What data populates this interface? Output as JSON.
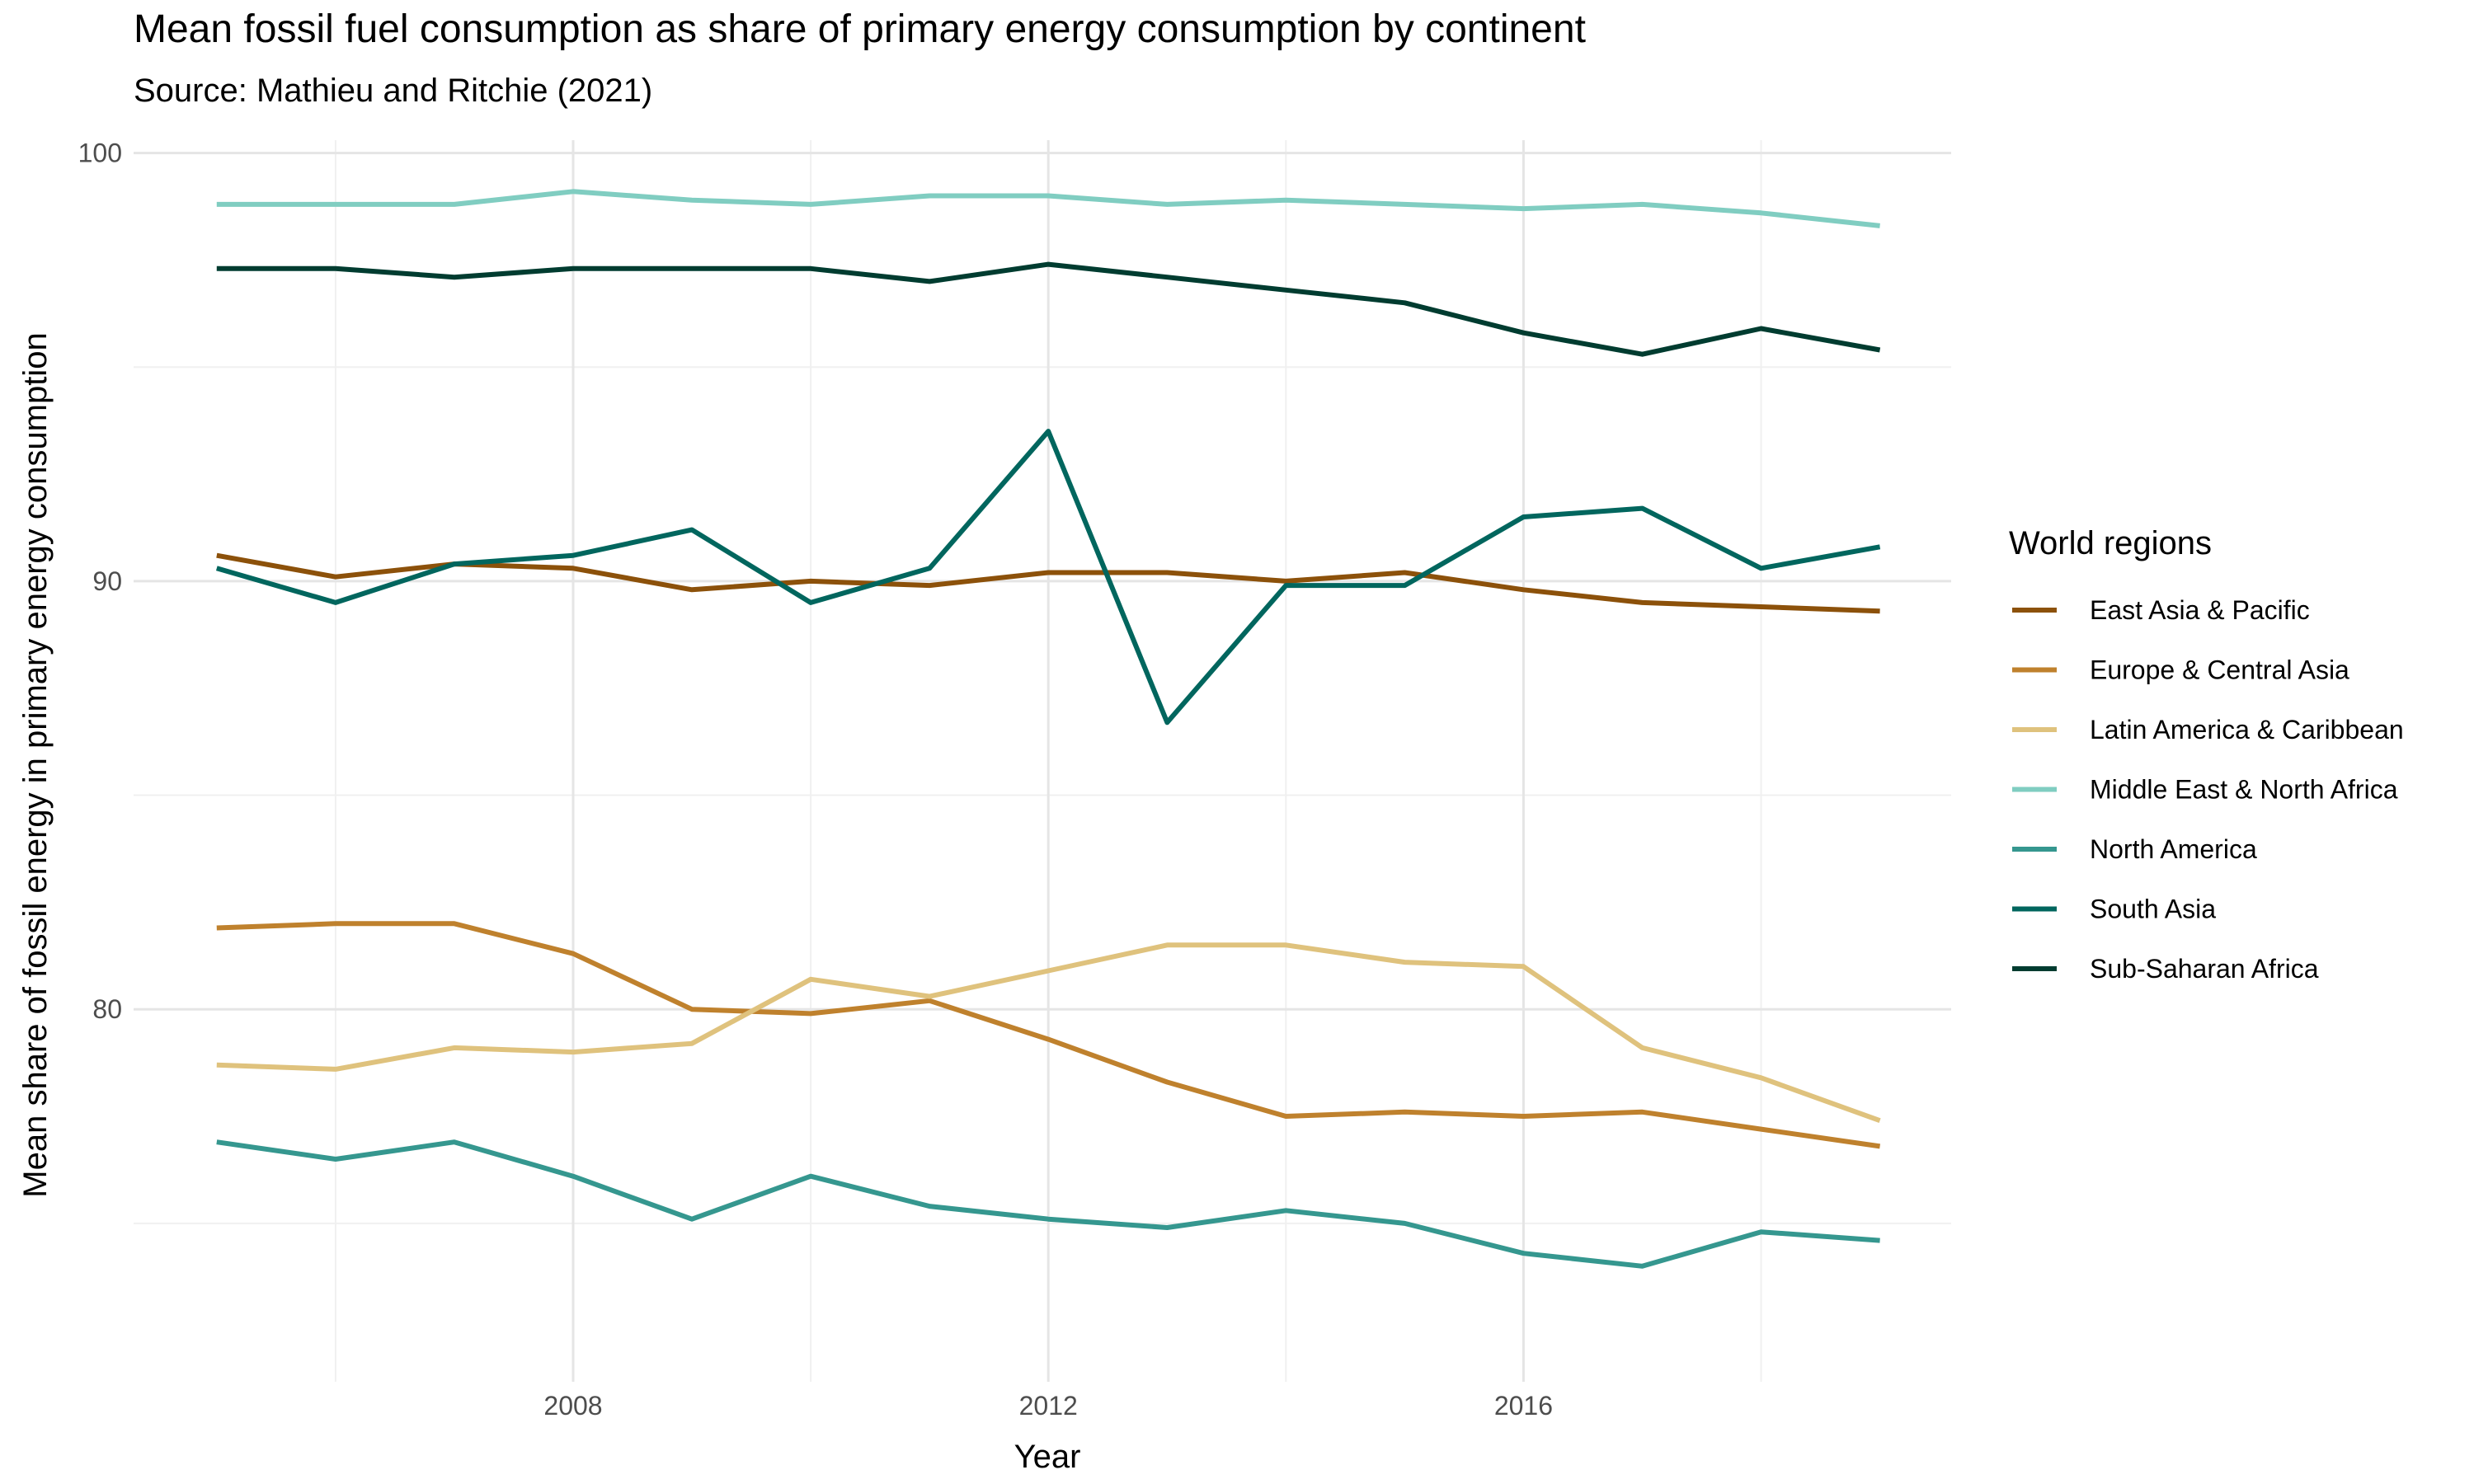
{
  "title": "Mean fossil fuel consumption as share of primary energy consumption by continent",
  "subtitle": "Source: Mathieu and Ritchie (2021)",
  "chart_data": {
    "type": "line",
    "title": "Mean fossil fuel consumption as share of primary energy consumption by continent",
    "subtitle": "Source: Mathieu and Ritchie (2021)",
    "xlabel": "Year",
    "ylabel": "Mean share of fossil energy in primary energy consumption",
    "x": [
      2005,
      2006,
      2007,
      2008,
      2009,
      2010,
      2011,
      2012,
      2013,
      2014,
      2015,
      2016,
      2017,
      2018,
      2019
    ],
    "xlim": [
      2004.3,
      2019.6
    ],
    "ylim": [
      71.3,
      100.3
    ],
    "x_ticks": [
      2008,
      2012,
      2016
    ],
    "y_ticks": [
      80,
      90,
      100
    ],
    "grid": true,
    "legend": {
      "title": "World regions",
      "position": "right"
    },
    "series": [
      {
        "name": "East Asia & Pacific",
        "color": "#8c510a",
        "values": [
          90.6,
          90.1,
          90.4,
          90.3,
          89.8,
          90.0,
          89.9,
          90.2,
          90.2,
          90.0,
          90.2,
          89.8,
          89.5,
          89.4,
          89.3
        ]
      },
      {
        "name": "Europe & Central Asia",
        "color": "#bf812d",
        "values": [
          81.9,
          82.0,
          82.0,
          81.3,
          80.0,
          79.9,
          80.2,
          79.3,
          78.3,
          77.5,
          77.6,
          77.5,
          77.6,
          77.2,
          76.8
        ]
      },
      {
        "name": "Latin America & Caribbean",
        "color": "#dfc27d",
        "values": [
          78.7,
          78.6,
          79.1,
          79.0,
          79.2,
          80.7,
          80.3,
          80.9,
          81.5,
          81.5,
          81.1,
          81.0,
          79.1,
          78.4,
          77.4
        ]
      },
      {
        "name": "Middle East & North Africa",
        "color": "#80cdc1",
        "values": [
          98.8,
          98.8,
          98.8,
          99.1,
          98.9,
          98.8,
          99.0,
          99.0,
          98.8,
          98.9,
          98.8,
          98.7,
          98.8,
          98.6,
          98.3
        ]
      },
      {
        "name": "North America",
        "color": "#35978f",
        "values": [
          76.9,
          76.5,
          76.9,
          76.1,
          75.1,
          76.1,
          75.4,
          75.1,
          74.9,
          75.3,
          75.0,
          74.3,
          74.0,
          74.8,
          74.6
        ]
      },
      {
        "name": "South Asia",
        "color": "#01665e",
        "values": [
          90.3,
          89.5,
          90.4,
          90.6,
          91.2,
          89.5,
          90.3,
          93.5,
          86.7,
          89.9,
          89.9,
          91.5,
          91.7,
          90.3,
          90.8
        ]
      },
      {
        "name": "Sub-Saharan Africa",
        "color": "#003c30",
        "values": [
          97.3,
          97.3,
          97.1,
          97.3,
          97.3,
          97.3,
          97.0,
          97.4,
          97.1,
          96.8,
          96.5,
          95.8,
          95.3,
          95.9,
          95.4
        ]
      }
    ]
  }
}
